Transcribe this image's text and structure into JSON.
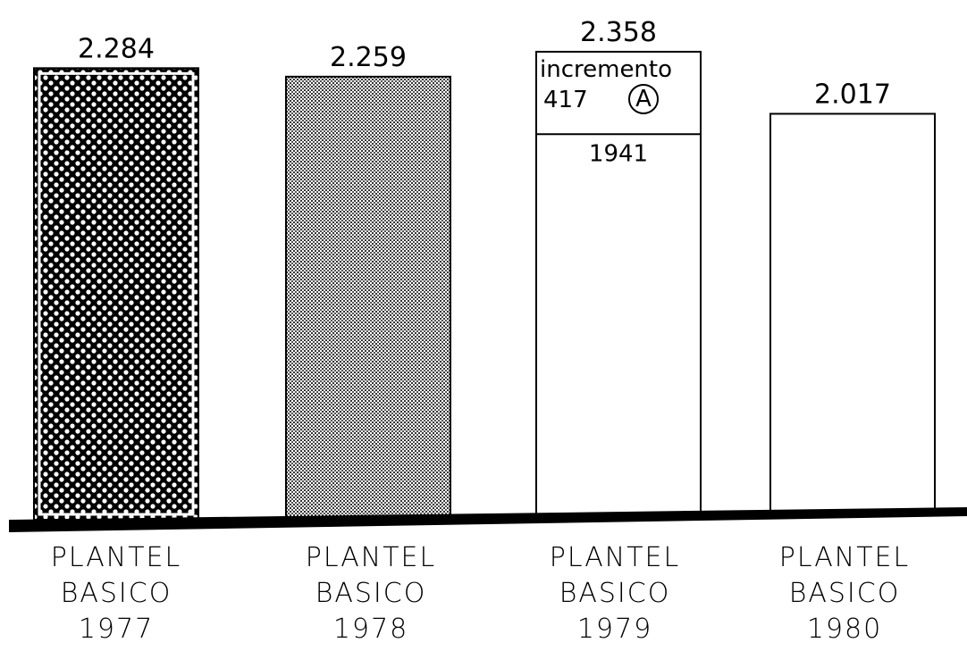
{
  "chart_data": {
    "type": "bar",
    "categories": [
      [
        "PLANTEL",
        "BASICO",
        "1977"
      ],
      [
        "PLANTEL",
        "BASICO",
        "1978"
      ],
      [
        "PLANTEL",
        "BASICO",
        "1979"
      ],
      [
        "PLANTEL",
        "BASICO",
        "1980"
      ]
    ],
    "values": [
      2284,
      2259,
      2358,
      2017
    ],
    "value_labels": [
      "2.284",
      "2.259",
      "2.358",
      "2.017"
    ],
    "segments": {
      "category_index": 2,
      "base": 1941,
      "base_label": "1941",
      "increment": 417,
      "increment_text": "incremento",
      "increment_value_label": "417",
      "increment_marker": "A"
    },
    "fills": [
      "pattern-dense-checker",
      "pattern-fine-stipple",
      "none",
      "none"
    ],
    "colors": {
      "bar_stroke": "#000000",
      "baseline": "#000000",
      "background": "#ffffff"
    },
    "ylim": [
      0,
      2400
    ],
    "grid": false,
    "legend": "none",
    "title": "",
    "xlabel": "",
    "ylabel": ""
  }
}
